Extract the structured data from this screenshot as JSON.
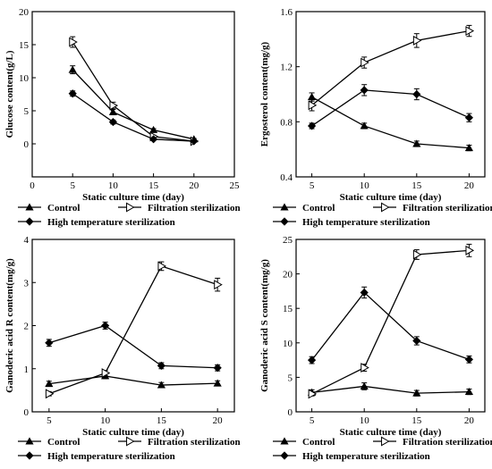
{
  "chart_data": [
    {
      "type": "line",
      "xlabel": "Static culture time (day)",
      "ylabel": "Glucose content(g/L)",
      "xlim": [
        0,
        25
      ],
      "ylim": [
        -5,
        20
      ],
      "x_ticks": [
        "0",
        "5",
        "10",
        "15",
        "20",
        "25"
      ],
      "y_ticks": [
        "0",
        "5",
        "10",
        "15",
        "20"
      ],
      "x": [
        5,
        10,
        15,
        20
      ],
      "series": [
        {
          "name": "Control",
          "marker": "triangle-up",
          "values": [
            11.2,
            4.8,
            2.1,
            0.7
          ],
          "err": [
            0.6,
            0.4,
            0.2,
            0.1
          ]
        },
        {
          "name": "Filtration sterilization",
          "marker": "triangle-right-open",
          "values": [
            15.4,
            5.8,
            1.1,
            0.4
          ],
          "err": [
            0.8,
            0.5,
            0.2,
            0.1
          ]
        },
        {
          "name": "High temperature sterilization",
          "marker": "diamond",
          "values": [
            7.6,
            3.3,
            0.7,
            0.4
          ],
          "err": [
            0.4,
            0.3,
            0.1,
            0.1
          ]
        }
      ]
    },
    {
      "type": "line",
      "xlabel": "Static culture time (day)",
      "ylabel": "Ergosterol content(mg/g)",
      "xlim": [
        3.5,
        21.5
      ],
      "ylim": [
        0.4,
        1.6
      ],
      "x_ticks": [
        "5",
        "10",
        "15",
        "20"
      ],
      "y_ticks": [
        "0.4",
        "0.8",
        "1.2",
        "1.6"
      ],
      "x": [
        5,
        10,
        15,
        20
      ],
      "series": [
        {
          "name": "Control",
          "marker": "triangle-up",
          "values": [
            0.98,
            0.77,
            0.64,
            0.61
          ],
          "err": [
            0.03,
            0.02,
            0.02,
            0.02
          ]
        },
        {
          "name": "Filtration sterilization",
          "marker": "triangle-right-open",
          "values": [
            0.92,
            1.23,
            1.39,
            1.46
          ],
          "err": [
            0.04,
            0.04,
            0.05,
            0.04
          ]
        },
        {
          "name": "High temperature sterilization",
          "marker": "diamond",
          "values": [
            0.77,
            1.03,
            1.0,
            0.83
          ],
          "err": [
            0.02,
            0.04,
            0.04,
            0.03
          ]
        }
      ]
    },
    {
      "type": "line",
      "xlabel": "Static culture time (day)",
      "ylabel": "Ganoderic acid R content(mg/g)",
      "xlim": [
        3.5,
        21.5
      ],
      "ylim": [
        0,
        4
      ],
      "x_ticks": [
        "5",
        "10",
        "15",
        "20"
      ],
      "y_ticks": [
        "0",
        "1",
        "2",
        "3",
        "4"
      ],
      "x": [
        5,
        10,
        15,
        20
      ],
      "series": [
        {
          "name": "Control",
          "marker": "triangle-up",
          "values": [
            0.65,
            0.83,
            0.62,
            0.66
          ],
          "err": [
            0.06,
            0.06,
            0.06,
            0.06
          ]
        },
        {
          "name": "Filtration sterilization",
          "marker": "triangle-right-open",
          "values": [
            0.42,
            0.9,
            3.38,
            2.95
          ],
          "err": [
            0.05,
            0.06,
            0.1,
            0.15
          ]
        },
        {
          "name": "High temperature sterilization",
          "marker": "diamond",
          "values": [
            1.6,
            2.0,
            1.07,
            1.02
          ],
          "err": [
            0.08,
            0.08,
            0.07,
            0.07
          ]
        }
      ]
    },
    {
      "type": "line",
      "xlabel": "Static culture time (day)",
      "ylabel": "Ganoderic acid S content(mg/g)",
      "xlim": [
        3.5,
        21.5
      ],
      "ylim": [
        0,
        25
      ],
      "x_ticks": [
        "5",
        "10",
        "15",
        "20"
      ],
      "y_ticks": [
        "0",
        "5",
        "10",
        "15",
        "20",
        "25"
      ],
      "x": [
        5,
        10,
        15,
        20
      ],
      "series": [
        {
          "name": "Control",
          "marker": "triangle-up",
          "values": [
            2.8,
            3.7,
            2.7,
            2.9
          ],
          "err": [
            0.4,
            0.5,
            0.4,
            0.4
          ]
        },
        {
          "name": "Filtration sterilization",
          "marker": "triangle-right-open",
          "values": [
            2.6,
            6.4,
            22.8,
            23.4
          ],
          "err": [
            0.3,
            0.5,
            0.7,
            0.9
          ]
        },
        {
          "name": "High temperature sterilization",
          "marker": "diamond",
          "values": [
            7.5,
            17.3,
            10.3,
            7.6
          ],
          "err": [
            0.5,
            0.8,
            0.6,
            0.5
          ]
        }
      ]
    }
  ]
}
